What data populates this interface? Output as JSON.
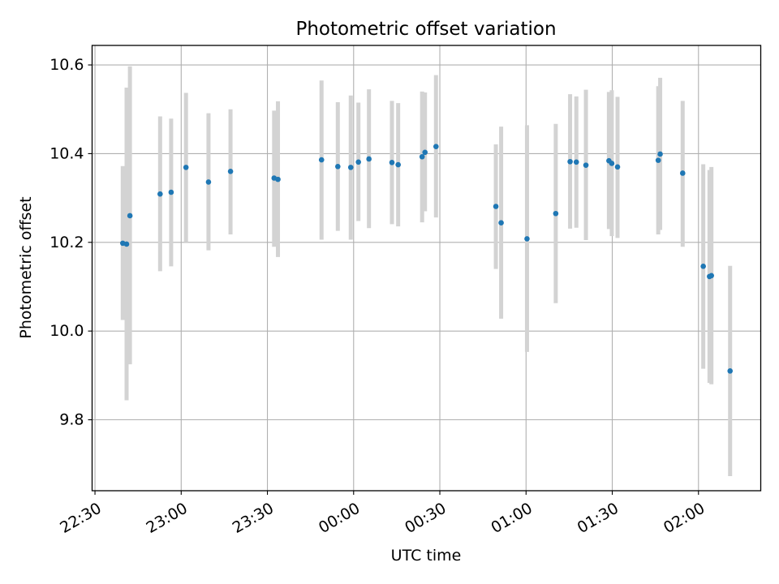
{
  "chart_data": {
    "type": "scatter",
    "title": "Photometric offset variation",
    "xlabel": "UTC time",
    "ylabel": "Photometric offset",
    "grid": true,
    "xlim": [
      "22:29:00",
      "02:21:40"
    ],
    "ylim": [
      9.64,
      10.644
    ],
    "x_ticks": [
      "22:30",
      "23:00",
      "23:30",
      "00:00",
      "00:30",
      "01:00",
      "01:30",
      "02:00"
    ],
    "y_ticks": [
      9.8,
      10.0,
      10.2,
      10.4,
      10.6
    ],
    "colors": {
      "point": "#1f77b4",
      "error_bar": "#d3d3d3",
      "grid": "#b0b0b0"
    },
    "series": [
      {
        "points": [
          {
            "time": "22:39:40",
            "y": 10.198,
            "low": 10.025,
            "high": 10.372
          },
          {
            "time": "22:41:00",
            "y": 10.196,
            "low": 9.844,
            "high": 10.549
          },
          {
            "time": "22:42:10",
            "y": 10.26,
            "low": 9.925,
            "high": 10.597
          },
          {
            "time": "22:52:40",
            "y": 10.309,
            "low": 10.135,
            "high": 10.484
          },
          {
            "time": "22:56:30",
            "y": 10.313,
            "low": 10.146,
            "high": 10.479
          },
          {
            "time": "23:01:40",
            "y": 10.369,
            "low": 10.2,
            "high": 10.537
          },
          {
            "time": "23:09:30",
            "y": 10.336,
            "low": 10.182,
            "high": 10.491
          },
          {
            "time": "23:17:10",
            "y": 10.36,
            "low": 10.218,
            "high": 10.5
          },
          {
            "time": "23:32:20",
            "y": 10.345,
            "low": 10.19,
            "high": 10.497
          },
          {
            "time": "23:33:40",
            "y": 10.342,
            "low": 10.167,
            "high": 10.518
          },
          {
            "time": "23:48:50",
            "y": 10.386,
            "low": 10.206,
            "high": 10.565
          },
          {
            "time": "23:54:30",
            "y": 10.371,
            "low": 10.226,
            "high": 10.516
          },
          {
            "time": "23:59:00",
            "y": 10.369,
            "low": 10.206,
            "high": 10.531
          },
          {
            "time": "00:01:40",
            "y": 10.381,
            "low": 10.248,
            "high": 10.515
          },
          {
            "time": "00:05:20",
            "y": 10.388,
            "low": 10.232,
            "high": 10.545
          },
          {
            "time": "00:13:20",
            "y": 10.38,
            "low": 10.241,
            "high": 10.519
          },
          {
            "time": "00:15:30",
            "y": 10.375,
            "low": 10.236,
            "high": 10.514
          },
          {
            "time": "00:23:50",
            "y": 10.393,
            "low": 10.245,
            "high": 10.54
          },
          {
            "time": "00:24:50",
            "y": 10.403,
            "low": 10.27,
            "high": 10.538
          },
          {
            "time": "00:28:40",
            "y": 10.416,
            "low": 10.256,
            "high": 10.577
          },
          {
            "time": "00:49:30",
            "y": 10.281,
            "low": 10.14,
            "high": 10.421
          },
          {
            "time": "00:51:20",
            "y": 10.244,
            "low": 10.028,
            "high": 10.461
          },
          {
            "time": "01:00:20",
            "y": 10.208,
            "low": 9.953,
            "high": 10.464
          },
          {
            "time": "01:10:20",
            "y": 10.265,
            "low": 10.063,
            "high": 10.467
          },
          {
            "time": "01:15:20",
            "y": 10.382,
            "low": 10.231,
            "high": 10.534
          },
          {
            "time": "01:17:30",
            "y": 10.381,
            "low": 10.233,
            "high": 10.529
          },
          {
            "time": "01:20:50",
            "y": 10.374,
            "low": 10.205,
            "high": 10.544
          },
          {
            "time": "01:28:50",
            "y": 10.384,
            "low": 10.23,
            "high": 10.539
          },
          {
            "time": "01:29:50",
            "y": 10.378,
            "low": 10.214,
            "high": 10.543
          },
          {
            "time": "01:31:50",
            "y": 10.37,
            "low": 10.21,
            "high": 10.528
          },
          {
            "time": "01:46:00",
            "y": 10.385,
            "low": 10.218,
            "high": 10.552
          },
          {
            "time": "01:46:40",
            "y": 10.399,
            "low": 10.228,
            "high": 10.571
          },
          {
            "time": "01:54:30",
            "y": 10.356,
            "low": 10.19,
            "high": 10.519
          },
          {
            "time": "02:01:40",
            "y": 10.146,
            "low": 9.915,
            "high": 10.376
          },
          {
            "time": "02:03:50",
            "y": 10.123,
            "low": 9.883,
            "high": 10.363
          },
          {
            "time": "02:04:30",
            "y": 10.125,
            "low": 9.88,
            "high": 10.37
          },
          {
            "time": "02:11:00",
            "y": 9.91,
            "low": 9.673,
            "high": 10.147
          }
        ]
      }
    ]
  }
}
